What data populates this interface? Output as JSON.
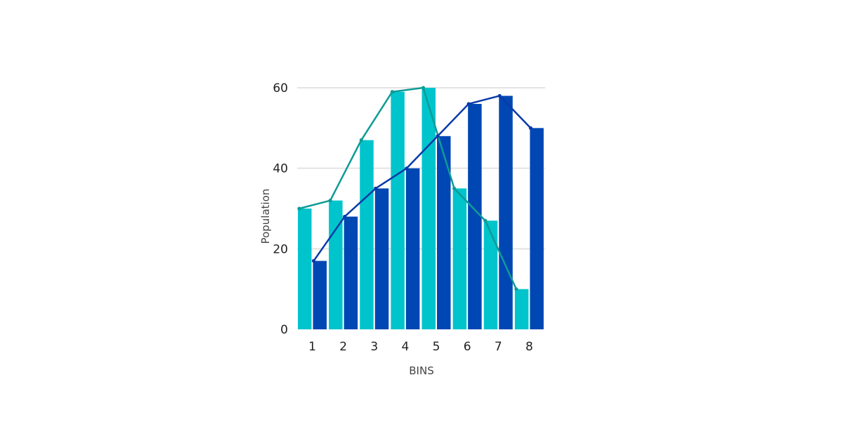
{
  "chart_data": {
    "type": "bar",
    "title": "",
    "xlabel": "BINS",
    "ylabel": "Population",
    "categories": [
      "1",
      "2",
      "3",
      "4",
      "5",
      "6",
      "7",
      "8"
    ],
    "ylim": [
      0,
      60
    ],
    "yticks": [
      "0",
      "20",
      "40",
      "60"
    ],
    "grid": true,
    "legend": "none",
    "series": [
      {
        "color": "#00c4cc",
        "line_color": "#0e9b96",
        "values": [
          30,
          32,
          47,
          59,
          60,
          35,
          27,
          10
        ]
      },
      {
        "color": "#0047b3",
        "line_color": "#0a3aa8",
        "values": [
          17,
          28,
          35,
          40,
          48,
          56,
          58,
          50
        ]
      }
    ]
  }
}
